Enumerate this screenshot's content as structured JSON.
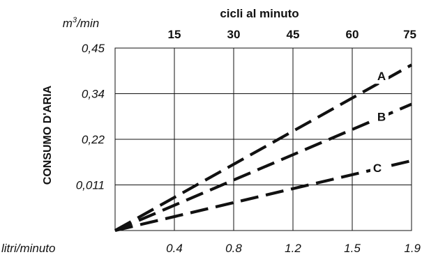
{
  "chart_data": {
    "type": "line",
    "top_axis": {
      "title": "cicli al minuto",
      "ticks": [
        "15",
        "30",
        "45",
        "60",
        "75"
      ],
      "range": [
        0,
        75
      ]
    },
    "left_axis": {
      "unit_base": "m",
      "unit_sup": "3",
      "unit_suffix": "/min",
      "title": "CONSUMO D'ARIA",
      "ticks": [
        "0,011",
        "0,22",
        "0,34",
        "0,45"
      ],
      "levels": 4
    },
    "bottom_axis": {
      "unit": "litri/minuto",
      "ticks": [
        "0.4",
        "0.8",
        "1.2",
        "1.5",
        "1.9"
      ]
    },
    "grid": true,
    "series": [
      {
        "name": "A",
        "x": [
          0,
          75
        ],
        "y": [
          0,
          3.63
        ]
      },
      {
        "name": "B",
        "x": [
          0,
          75
        ],
        "y": [
          0,
          2.77
        ]
      },
      {
        "name": "C",
        "x": [
          0,
          75
        ],
        "y": [
          0,
          1.53
        ]
      }
    ],
    "line_style": "dashed",
    "line_color": "#111111"
  }
}
